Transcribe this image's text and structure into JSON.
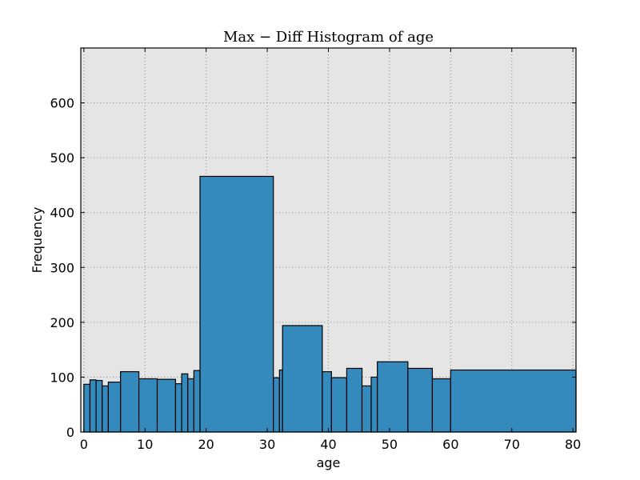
{
  "chart_data": {
    "type": "bar",
    "title": "Max − Diff Histogram of age",
    "xlabel": "age",
    "ylabel": "Frequency",
    "xlim": [
      -0.5,
      80.5
    ],
    "ylim": [
      0,
      700
    ],
    "grid": true,
    "xticks": [
      "0",
      "10",
      "20",
      "30",
      "40",
      "50",
      "60",
      "70",
      "80"
    ],
    "yticks": [
      "0",
      "100",
      "200",
      "300",
      "400",
      "500",
      "600"
    ],
    "colors": {
      "bar": "#348ABD",
      "bar_edge": "#000000",
      "plot_bg": "#E5E5E5",
      "grid": "#888888"
    },
    "bins": [
      {
        "left": 0.0,
        "right": 1.0,
        "value": 87
      },
      {
        "left": 1.0,
        "right": 2.0,
        "value": 95
      },
      {
        "left": 2.0,
        "right": 3.0,
        "value": 94
      },
      {
        "left": 3.0,
        "right": 4.0,
        "value": 84
      },
      {
        "left": 4.0,
        "right": 6.0,
        "value": 91
      },
      {
        "left": 6.0,
        "right": 9.0,
        "value": 110
      },
      {
        "left": 9.0,
        "right": 12.0,
        "value": 97
      },
      {
        "left": 12.0,
        "right": 15.0,
        "value": 96
      },
      {
        "left": 15.0,
        "right": 16.0,
        "value": 88
      },
      {
        "left": 16.0,
        "right": 17.0,
        "value": 106
      },
      {
        "left": 17.0,
        "right": 18.0,
        "value": 97
      },
      {
        "left": 18.0,
        "right": 19.0,
        "value": 112
      },
      {
        "left": 19.0,
        "right": 31.0,
        "value": 466
      },
      {
        "left": 31.0,
        "right": 32.0,
        "value": 99
      },
      {
        "left": 32.0,
        "right": 32.5,
        "value": 113
      },
      {
        "left": 32.5,
        "right": 39.0,
        "value": 194
      },
      {
        "left": 39.0,
        "right": 40.5,
        "value": 110
      },
      {
        "left": 40.5,
        "right": 43.0,
        "value": 99
      },
      {
        "left": 43.0,
        "right": 45.5,
        "value": 116
      },
      {
        "left": 45.5,
        "right": 47.0,
        "value": 84
      },
      {
        "left": 47.0,
        "right": 48.0,
        "value": 100
      },
      {
        "left": 48.0,
        "right": 53.0,
        "value": 128
      },
      {
        "left": 53.0,
        "right": 57.0,
        "value": 116
      },
      {
        "left": 57.0,
        "right": 60.0,
        "value": 97
      },
      {
        "left": 60.0,
        "right": 80.5,
        "value": 113
      }
    ]
  }
}
